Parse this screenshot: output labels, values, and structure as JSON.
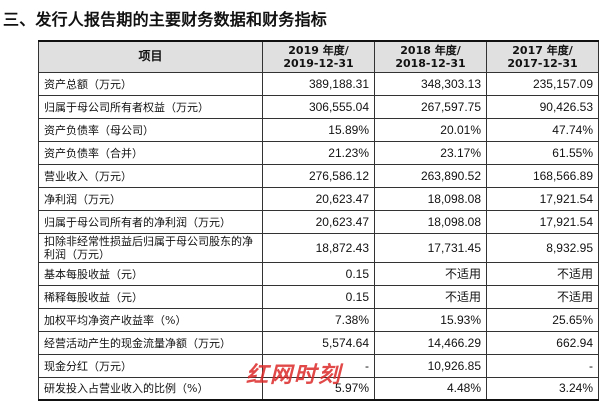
{
  "title": "三、发行人报告期的主要财务数据和财务指标",
  "table": {
    "headers": [
      {
        "line1": "项目",
        "line2": ""
      },
      {
        "line1": "2019 年度/",
        "line2": "2019-12-31"
      },
      {
        "line1": "2018 年度/",
        "line2": "2018-12-31"
      },
      {
        "line1": "2017 年度/",
        "line2": "2017-12-31"
      }
    ],
    "rows": [
      {
        "label": "资产总额（万元）",
        "v2019": "389,188.31",
        "v2018": "348,303.13",
        "v2017": "235,157.09"
      },
      {
        "label": "归属于母公司所有者权益（万元）",
        "v2019": "306,555.04",
        "v2018": "267,597.75",
        "v2017": "90,426.53"
      },
      {
        "label": "资产负债率（母公司）",
        "v2019": "15.89%",
        "v2018": "20.01%",
        "v2017": "47.74%"
      },
      {
        "label": "资产负债率（合并）",
        "v2019": "21.23%",
        "v2018": "23.17%",
        "v2017": "61.55%"
      },
      {
        "label": "营业收入（万元）",
        "v2019": "276,586.12",
        "v2018": "263,890.52",
        "v2017": "168,566.89"
      },
      {
        "label": "净利润（万元）",
        "v2019": "20,623.47",
        "v2018": "18,098.08",
        "v2017": "17,921.54"
      },
      {
        "label": "归属于母公司所有者的净利润（万元）",
        "v2019": "20,623.47",
        "v2018": "18,098.08",
        "v2017": "17,921.54"
      },
      {
        "label": "扣除非经常性损益后归属于母公司股东的净利润（万元）",
        "v2019": "18,872.43",
        "v2018": "17,731.45",
        "v2017": "8,932.95"
      },
      {
        "label": "基本每股收益（元）",
        "v2019": "0.15",
        "v2018": "不适用",
        "v2017": "不适用"
      },
      {
        "label": "稀释每股收益（元）",
        "v2019": "0.15",
        "v2018": "不适用",
        "v2017": "不适用"
      },
      {
        "label": "加权平均净资产收益率（%）",
        "v2019": "7.38%",
        "v2018": "15.93%",
        "v2017": "25.65%"
      },
      {
        "label": "经营活动产生的现金流量净额（万元）",
        "v2019": "5,574.64",
        "v2018": "14,466.29",
        "v2017": "662.94"
      },
      {
        "label": "现金分红（万元）",
        "v2019": "-",
        "v2018": "10,926.85",
        "v2017": "-"
      },
      {
        "label": "研发投入占营业收入的比例（%）",
        "v2019": "5.97%",
        "v2018": "4.48%",
        "v2017": "3.24%"
      }
    ]
  },
  "watermark": {
    "text": "红网时刻",
    "color": "#dc2828"
  }
}
